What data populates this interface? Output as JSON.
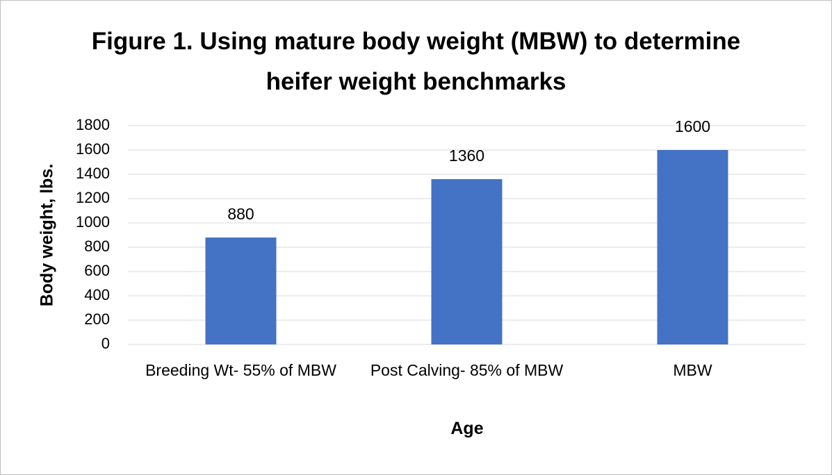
{
  "chart_data": {
    "type": "bar",
    "title": "Figure 1. Using mature body weight (MBW) to determine heifer weight benchmarks",
    "x_label": "Age",
    "y_label": "Body weight, lbs.",
    "categories": [
      "Breeding Wt- 55% of MBW",
      "Post Calving- 85% of MBW",
      "MBW"
    ],
    "values": [
      880,
      1360,
      1600
    ],
    "color": "#4472c4",
    "ylim": [
      0,
      1800
    ],
    "yticks": [
      0,
      200,
      400,
      600,
      800,
      1000,
      1200,
      1400,
      1600,
      1800
    ],
    "grid": true
  }
}
